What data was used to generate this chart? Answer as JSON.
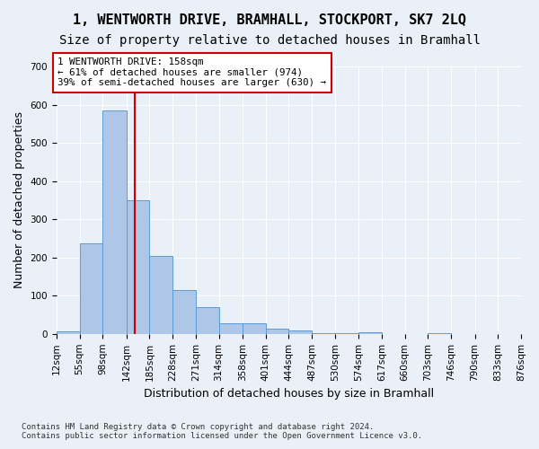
{
  "title": "1, WENTWORTH DRIVE, BRAMHALL, STOCKPORT, SK7 2LQ",
  "subtitle": "Size of property relative to detached houses in Bramhall",
  "xlabel": "Distribution of detached houses by size in Bramhall",
  "ylabel": "Number of detached properties",
  "footer_line1": "Contains HM Land Registry data © Crown copyright and database right 2024.",
  "footer_line2": "Contains public sector information licensed under the Open Government Licence v3.0.",
  "bar_edges": [
    12,
    55,
    98,
    142,
    185,
    228,
    271,
    314,
    358,
    401,
    444,
    487,
    530,
    574,
    617,
    660,
    703,
    746,
    790,
    833,
    876
  ],
  "bar_heights": [
    6,
    238,
    585,
    350,
    205,
    115,
    70,
    27,
    27,
    14,
    8,
    3,
    1,
    5,
    0,
    0,
    1,
    0,
    0,
    0
  ],
  "bar_color": "#aec6e8",
  "bar_edge_color": "#5b9bd5",
  "vline_x": 158,
  "vline_color": "#cc0000",
  "annotation_text": "1 WENTWORTH DRIVE: 158sqm\n← 61% of detached houses are smaller (974)\n39% of semi-detached houses are larger (630) →",
  "annotation_box_color": "#ffffff",
  "annotation_box_edge_color": "#cc0000",
  "ylim": [
    0,
    700
  ],
  "yticks": [
    0,
    100,
    200,
    300,
    400,
    500,
    600,
    700
  ],
  "background_color": "#eaf0f8",
  "axes_background_color": "#eaf0f8",
  "grid_color": "#ffffff",
  "title_fontsize": 11,
  "subtitle_fontsize": 10,
  "tick_label_fontsize": 7.5,
  "ylabel_fontsize": 9,
  "xlabel_fontsize": 9
}
